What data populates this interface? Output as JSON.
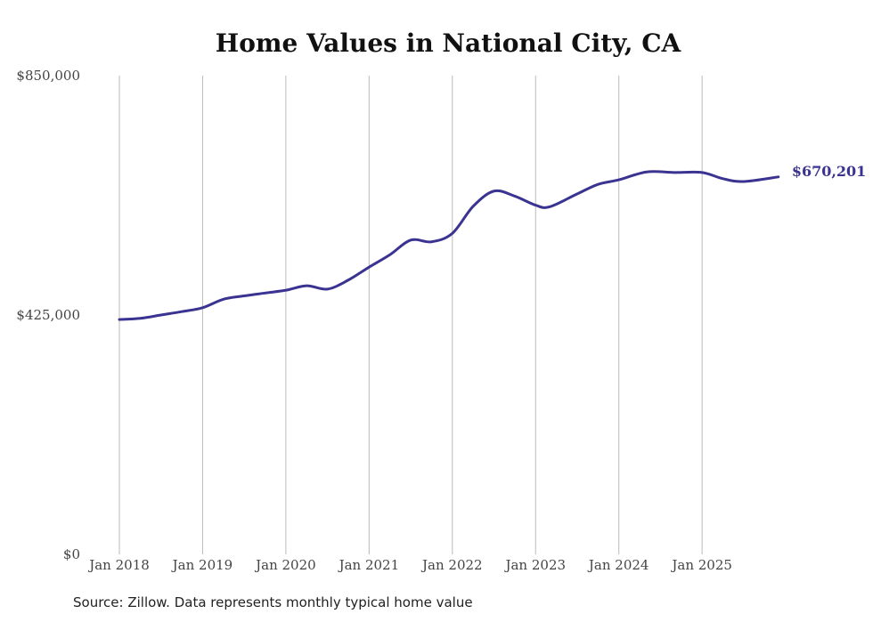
{
  "chart_data": {
    "type": "line",
    "title": "Home Values in National City, CA",
    "xlabel": "",
    "ylabel": "",
    "ylim": [
      0,
      850000
    ],
    "y_ticks": [
      0,
      425000,
      850000
    ],
    "y_tick_labels": [
      "$0",
      "$425,000",
      "$850,000"
    ],
    "x_ticks": [
      "2018-01",
      "2019-01",
      "2020-01",
      "2021-01",
      "2022-01",
      "2023-01",
      "2024-01",
      "2025-01"
    ],
    "x_tick_labels": [
      "Jan 2018",
      "Jan 2019",
      "Jan 2020",
      "Jan 2021",
      "Jan 2022",
      "Jan 2023",
      "Jan 2024",
      "Jan 2025"
    ],
    "grid": "vertical",
    "series": [
      {
        "name": "Typical home value",
        "color": "#3b3391",
        "x": [
          "2018-01",
          "2018-04",
          "2018-07",
          "2018-10",
          "2019-01",
          "2019-04",
          "2019-07",
          "2019-10",
          "2020-01",
          "2020-04",
          "2020-07",
          "2020-10",
          "2021-01",
          "2021-04",
          "2021-07",
          "2021-10",
          "2022-01",
          "2022-04",
          "2022-07",
          "2022-10",
          "2023-01",
          "2023-03",
          "2023-07",
          "2023-10",
          "2024-01",
          "2024-05",
          "2024-09",
          "2025-01",
          "2025-04",
          "2025-07",
          "2025-12"
        ],
        "values": [
          417000,
          419000,
          425000,
          431000,
          438000,
          453000,
          459000,
          464000,
          469000,
          477000,
          471000,
          487000,
          510000,
          532000,
          558000,
          555000,
          570000,
          618000,
          645000,
          636000,
          620000,
          617000,
          640000,
          657000,
          665000,
          679000,
          678000,
          678000,
          667000,
          662000,
          670201
        ]
      }
    ],
    "end_label": "$670,201"
  },
  "source": "Source: Zillow. Data represents monthly typical home value"
}
